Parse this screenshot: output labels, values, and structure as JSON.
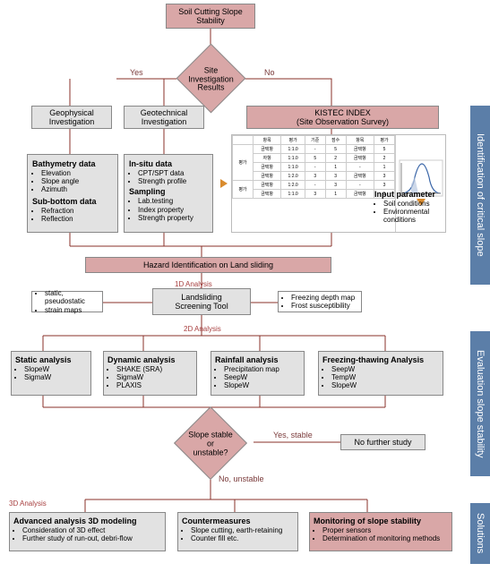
{
  "colors": {
    "pink": "#d9a7a7",
    "grey": "#e2e2e2",
    "sidebar": "#5b7ea8",
    "line": "#88302a",
    "redtext": "#a84040"
  },
  "top_box": "Soil Cutting Slope\nStability",
  "diamond1": "Site Investigation\nResults",
  "yes1": "Yes",
  "no1": "No",
  "geophys_title": "Geophysical\nInvestigation",
  "geotech_title": "Geotechnical\nInvestigation",
  "kistec_title": "KISTEC INDEX\n(Site Observation Survey)",
  "bathymetry_h": "Bathymetry data",
  "bathymetry_items": [
    "Elevation",
    "Slope angle",
    "Azimuth"
  ],
  "subbottom_h": "Sub-bottom data",
  "subbottom_items": [
    "Refraction",
    "Reflection"
  ],
  "insitu_h": "In-situ data",
  "insitu_items": [
    "CPT/SPT data",
    "Strength profile"
  ],
  "sampling_h": "Sampling",
  "sampling_items": [
    "Lab.testing",
    "Index property",
    "Strength property"
  ],
  "input_h": "Input parameter",
  "input_items": [
    "Soil conditions",
    "Environmental conditions"
  ],
  "hazard": "Hazard Identification on Land sliding",
  "d1_label": "1D Analysis",
  "screening_title": "Landsliding\nScreening Tool",
  "d1_left_items": [
    "static, pseudostatic",
    "strain maps"
  ],
  "d1_right_items": [
    "Freezing depth map",
    "Frost susceptibility"
  ],
  "d2_label": "2D Analysis",
  "static_title": "Static analysis",
  "static_items": [
    "SlopeW",
    "SigmaW"
  ],
  "dynamic_title": "Dynamic analysis",
  "dynamic_items": [
    "SHAKE (SRA)",
    "SigmaW",
    "PLAXIS"
  ],
  "rainfall_title": "Rainfall analysis",
  "rainfall_items": [
    "Precipitation map",
    "SeepW",
    "SlopeW"
  ],
  "freeze_title": "Freezing-thawing Analysis",
  "freeze_items": [
    "SeepW",
    "TempW",
    "SlopeW"
  ],
  "diamond2": "Slope stable or\nunstable?",
  "yes2": "Yes, stable",
  "no2": "No, unstable",
  "no_further": "No further study",
  "d3_label": "3D Analysis",
  "adv_title": "Advanced analysis 3D modeling",
  "adv_items": [
    "Consideration of 3D effect",
    "Further study of run-out, debri-flow"
  ],
  "counter_title": "Countermeasures",
  "counter_items": [
    "Slope cutting, earth-retaining",
    "Counter fill etc."
  ],
  "monitor_title": "Monitoring of slope stability",
  "monitor_items": [
    "Proper sensors",
    "Determination of monitoring methods"
  ],
  "side1": "Identification of critical slope",
  "side2": "Evaluation slope stability",
  "side3": "Solutions"
}
